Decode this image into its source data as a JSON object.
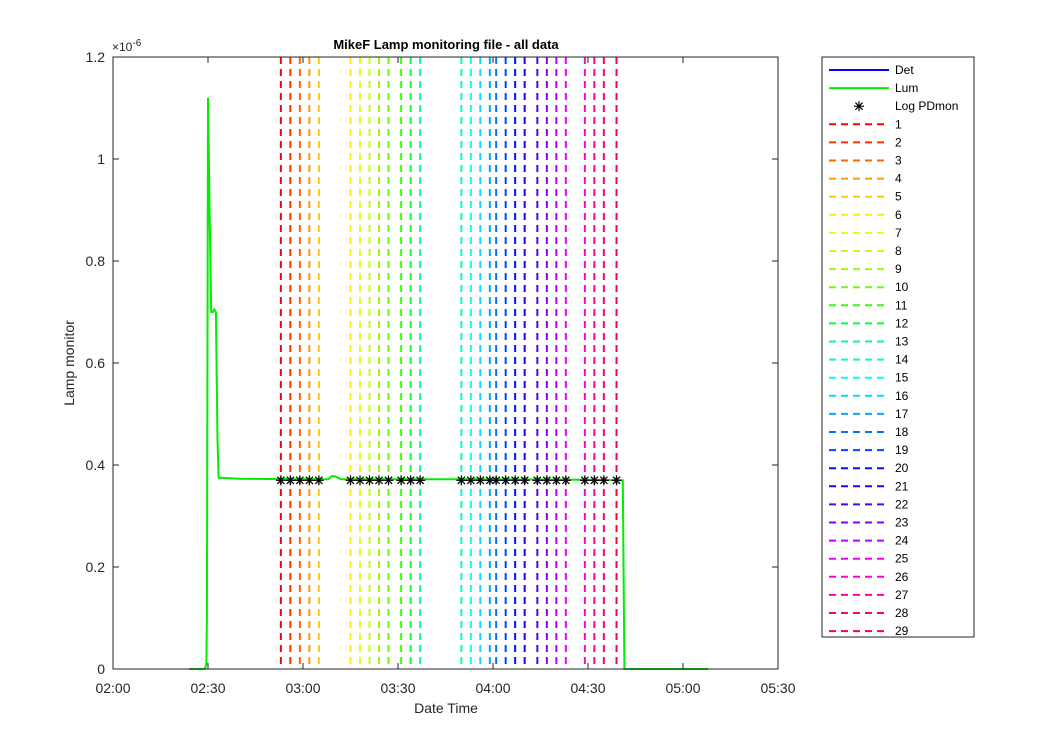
{
  "chart_data": {
    "type": "line",
    "title": "MikeF Lamp monitoring file - all data",
    "xlabel": "Date Time",
    "ylabel": "Lamp monitor",
    "y_exponent_label": "×10",
    "y_exponent_power": "-6",
    "xlim": [
      "02:00",
      "05:30"
    ],
    "ylim": [
      0,
      1.2
    ],
    "xticks": [
      "02:00",
      "02:30",
      "03:00",
      "03:30",
      "04:00",
      "04:30",
      "05:00",
      "05:30"
    ],
    "yticks": [
      "0",
      "0.2",
      "0.4",
      "0.6",
      "0.8",
      "1",
      "1.2"
    ],
    "grid": false,
    "legend_position": "outside-right",
    "series": [
      {
        "name": "Det",
        "color": "#0000ff",
        "style": "solid",
        "x": [],
        "y": []
      },
      {
        "name": "Lum",
        "color": "#00ee00",
        "style": "solid",
        "x": [
          "02:24",
          "02:29",
          "02:29:30",
          "02:29:40",
          "02:30",
          "02:30:30",
          "02:31",
          "02:31:30",
          "02:32",
          "02:32:30",
          "02:33",
          "02:33:20",
          "02:40",
          "03:00",
          "03:08",
          "03:09",
          "03:10",
          "03:12",
          "03:30",
          "04:00",
          "04:30",
          "04:41",
          "04:41:30",
          "05:00",
          "05:08"
        ],
        "y": [
          0,
          0,
          0.01,
          0.1,
          1.12,
          0.9,
          0.7,
          0.7,
          0.705,
          0.7,
          0.45,
          0.375,
          0.373,
          0.372,
          0.372,
          0.378,
          0.378,
          0.372,
          0.372,
          0.372,
          0.371,
          0.37,
          0,
          0,
          0
        ]
      },
      {
        "name": "Log PDmon",
        "color": "#000000",
        "style": "marker-asterisk",
        "x": [
          "02:53",
          "02:56",
          "02:59",
          "03:02",
          "03:05",
          "03:15",
          "03:18",
          "03:21",
          "03:24",
          "03:27",
          "03:31",
          "03:34",
          "03:37",
          "03:50",
          "03:53",
          "03:56",
          "03:59",
          "04:01",
          "04:04",
          "04:07",
          "04:10",
          "04:14",
          "04:17",
          "04:20",
          "04:23",
          "04:29",
          "04:32",
          "04:35",
          "04:39"
        ],
        "y": [
          0.37,
          0.37,
          0.37,
          0.37,
          0.37,
          0.37,
          0.37,
          0.37,
          0.37,
          0.37,
          0.37,
          0.37,
          0.37,
          0.37,
          0.37,
          0.37,
          0.37,
          0.37,
          0.37,
          0.37,
          0.37,
          0.37,
          0.37,
          0.37,
          0.37,
          0.37,
          0.37,
          0.37,
          0.37
        ]
      }
    ],
    "markers": [
      {
        "name": "1",
        "x": "02:53",
        "color": "#ff0000"
      },
      {
        "name": "2",
        "x": "02:56",
        "color": "#ff3300"
      },
      {
        "name": "3",
        "x": "02:59",
        "color": "#ff6600"
      },
      {
        "name": "4",
        "x": "03:02",
        "color": "#ff9900"
      },
      {
        "name": "5",
        "x": "03:05",
        "color": "#ffcc00"
      },
      {
        "name": "6",
        "x": "03:15",
        "color": "#ffee00"
      },
      {
        "name": "7",
        "x": "03:18",
        "color": "#eeff00"
      },
      {
        "name": "8",
        "x": "03:21",
        "color": "#ccff00"
      },
      {
        "name": "9",
        "x": "03:24",
        "color": "#99ff00"
      },
      {
        "name": "10",
        "x": "03:27",
        "color": "#66ff00"
      },
      {
        "name": "11",
        "x": "03:31",
        "color": "#33ff00"
      },
      {
        "name": "12",
        "x": "03:34",
        "color": "#00ff33"
      },
      {
        "name": "13",
        "x": "03:37",
        "color": "#00ff99"
      },
      {
        "name": "14",
        "x": "03:50",
        "color": "#00ffcc"
      },
      {
        "name": "15",
        "x": "03:53",
        "color": "#00ffff"
      },
      {
        "name": "16",
        "x": "03:56",
        "color": "#00ddff"
      },
      {
        "name": "17",
        "x": "03:59",
        "color": "#00aaff"
      },
      {
        "name": "18",
        "x": "04:01",
        "color": "#0077ff"
      },
      {
        "name": "19",
        "x": "04:04",
        "color": "#0044ff"
      },
      {
        "name": "20",
        "x": "04:07",
        "color": "#0011ff"
      },
      {
        "name": "21",
        "x": "04:10",
        "color": "#2200ff"
      },
      {
        "name": "22",
        "x": "04:14",
        "color": "#5500ff"
      },
      {
        "name": "23",
        "x": "04:17",
        "color": "#8800ff"
      },
      {
        "name": "24",
        "x": "04:20",
        "color": "#bb00ff"
      },
      {
        "name": "25",
        "x": "04:23",
        "color": "#ee00ff"
      },
      {
        "name": "26",
        "x": "04:29",
        "color": "#ff00dd"
      },
      {
        "name": "27",
        "x": "04:32",
        "color": "#ff00aa"
      },
      {
        "name": "28",
        "x": "04:35",
        "color": "#ff0077"
      },
      {
        "name": "29",
        "x": "04:39",
        "color": "#ff0044"
      }
    ]
  }
}
